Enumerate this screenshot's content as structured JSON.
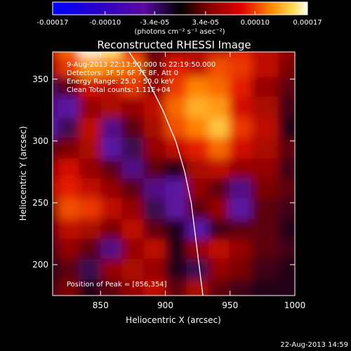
{
  "chart_data": {
    "type": "heatmap",
    "title": "Reconstructed RHESSI Image",
    "xlabel": "Heliocentric X (arcsec)",
    "ylabel": "Heliocentric Y (arcsec)",
    "xlim": [
      813,
      1000
    ],
    "ylim": [
      175,
      372
    ],
    "x_ticks": [
      850,
      900,
      950,
      1000
    ],
    "y_ticks": [
      200,
      250,
      300,
      350
    ],
    "colorbar": {
      "min": -0.00017,
      "max": 0.00017,
      "tick_values": [
        -0.00017,
        -0.0001,
        -3.4e-05,
        3.4e-05,
        0.0001,
        0.00017
      ],
      "tick_labels": [
        "-0.00017",
        "-0.00010",
        "-3.4e-05",
        "3.4e-05",
        "0.00010",
        "0.00017"
      ],
      "unit_label": "(photons cm⁻² s⁻¹ asec⁻²)"
    },
    "annotations": [
      "9-Aug-2013 22:13:50.000 to 22:19:50.000",
      "Detectors: 3F 5F 6F 7F 8F, Att 0",
      "Energy Range: 25.0 - 50.0 keV",
      "Clean    Total counts: 1.11E+04"
    ],
    "peak_label": "Position of Peak = [856,354]",
    "peak": [
      856,
      354
    ],
    "limb_points": [
      [
        872,
        372
      ],
      [
        886,
        350
      ],
      [
        898,
        325
      ],
      [
        908,
        300
      ],
      [
        915,
        275
      ],
      [
        920,
        250
      ],
      [
        923,
        225
      ],
      [
        926,
        200
      ],
      [
        929,
        175
      ]
    ],
    "image_grid_x": [
      813,
      830,
      846,
      863,
      879,
      896,
      913,
      929,
      946,
      962,
      979,
      1000
    ],
    "image_grid_y": [
      372,
      355,
      339,
      323,
      306,
      290,
      273,
      257,
      241,
      224,
      208,
      192,
      175
    ],
    "image_grid": [
      [
        0.3,
        0.55,
        0.95,
        0.85,
        0.4,
        0.1,
        0.2,
        0.25,
        0.3,
        0.4,
        0.3,
        0.2
      ],
      [
        0.2,
        0.45,
        0.65,
        0.6,
        0.55,
        0.15,
        0.4,
        0.3,
        0.5,
        0.45,
        0.3,
        0.15
      ],
      [
        -0.1,
        0.1,
        0.35,
        0.3,
        0.45,
        0.2,
        0.45,
        0.6,
        0.55,
        0.4,
        0.2,
        0.1
      ],
      [
        -0.2,
        -0.3,
        0.2,
        0.25,
        0.2,
        0.3,
        0.55,
        0.7,
        0.65,
        0.35,
        0.25,
        0.05
      ],
      [
        -0.3,
        -0.1,
        0.3,
        -0.2,
        0.1,
        0.25,
        0.5,
        0.6,
        0.75,
        0.45,
        0.3,
        0.0
      ],
      [
        0.1,
        0.15,
        0.25,
        -0.3,
        -0.1,
        0.2,
        0.3,
        0.4,
        0.55,
        0.35,
        0.25,
        0.1
      ],
      [
        0.2,
        0.35,
        0.2,
        0.1,
        -0.2,
        0.1,
        0.0,
        0.25,
        0.3,
        0.2,
        0.2,
        0.05
      ],
      [
        0.25,
        0.4,
        0.3,
        0.2,
        0.1,
        -0.2,
        -0.3,
        0.2,
        0.1,
        -0.2,
        0.15,
        0.1
      ],
      [
        0.15,
        0.5,
        0.45,
        0.3,
        0.2,
        -0.1,
        -0.25,
        0.1,
        0.2,
        -0.3,
        0.1,
        0.05
      ],
      [
        0.1,
        0.3,
        0.25,
        0.15,
        0.3,
        0.1,
        0.0,
        -0.3,
        0.05,
        0.1,
        0.1,
        0.0
      ],
      [
        0.05,
        0.2,
        0.1,
        -0.2,
        0.2,
        0.3,
        0.0,
        0.2,
        0.3,
        0.2,
        0.1,
        0.05
      ],
      [
        0.0,
        0.1,
        -0.1,
        0.2,
        0.25,
        0.2,
        0.0,
        -0.1,
        0.2,
        0.15,
        0.05,
        0.0
      ],
      [
        0.05,
        0.15,
        0.0,
        0.1,
        0.2,
        0.3,
        0.1,
        0.25,
        0.1,
        0.05,
        0.0,
        0.0
      ]
    ]
  },
  "footer": {
    "timestamp": "22-Aug-2013 14:59"
  }
}
